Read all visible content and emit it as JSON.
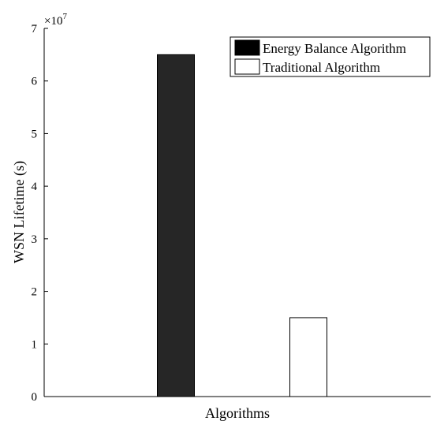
{
  "chart_data": {
    "type": "bar",
    "ylabel": "WSN  Lifetime (s)",
    "xlabel": "Algorithms",
    "y_exponent_label": "×10",
    "y_exponent_power": "7",
    "ylim": [
      0,
      7
    ],
    "yticks": [
      "0",
      "1",
      "2",
      "3",
      "4",
      "5",
      "6",
      "7"
    ],
    "x_tick_labels_shown": false,
    "grid": false,
    "legend_position": "top-right",
    "series": [
      {
        "name": "Energy Balance Algorithm",
        "color": "#262626",
        "values": [
          6.5
        ]
      },
      {
        "name": "Traditional Algorithm",
        "color": "#ffffff",
        "values": [
          1.5
        ]
      }
    ],
    "value_multiplier": 10000000
  }
}
